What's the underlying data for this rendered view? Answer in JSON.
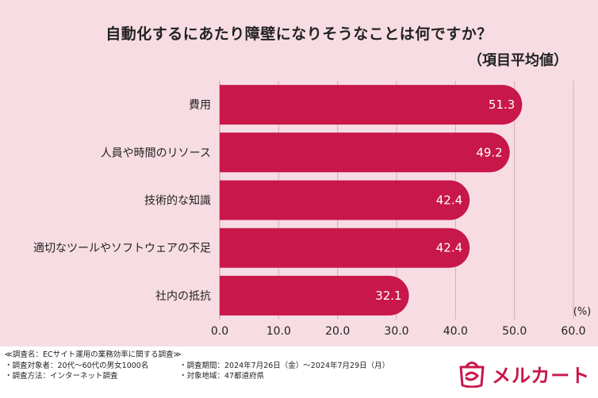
{
  "title": "自動化するにあたり障壁になりそうなことは何ですか？",
  "subtitle": "（項目平均値）",
  "colors": {
    "bar": "#c8174a",
    "background": "#f7dde3",
    "grid": "#d9a9b4"
  },
  "chart_data": {
    "type": "bar",
    "orientation": "horizontal",
    "categories": [
      "費用",
      "人員や時間のリソース",
      "技術的な知識",
      "適切なツールやソフトウェアの不足",
      "社内の抵抗"
    ],
    "values": [
      51.3,
      49.2,
      42.4,
      42.4,
      32.1
    ],
    "value_labels": [
      "51.3",
      "49.2",
      "42.4",
      "42.4",
      "32.1"
    ],
    "xlim": [
      0,
      60
    ],
    "xticks": [
      "0.0",
      "10.0",
      "20.0",
      "30.0",
      "40.0",
      "50.0",
      "60.0"
    ],
    "xunit": "(%)",
    "grid": true
  },
  "footer": {
    "survey_title": "≪調査名：ECサイト運用の業務効率に関する調査≫",
    "subjects": "・調査対象者：20代〜60代の男女1000名",
    "period": "・調査期間：2024年7月26日（金）〜2024年7月29日（月）",
    "method": "・調査方法：インターネット調査",
    "region": "・対象地域：47都道府県",
    "logo_text": "メルカート",
    "logo_icon": "bag-logo-icon"
  }
}
